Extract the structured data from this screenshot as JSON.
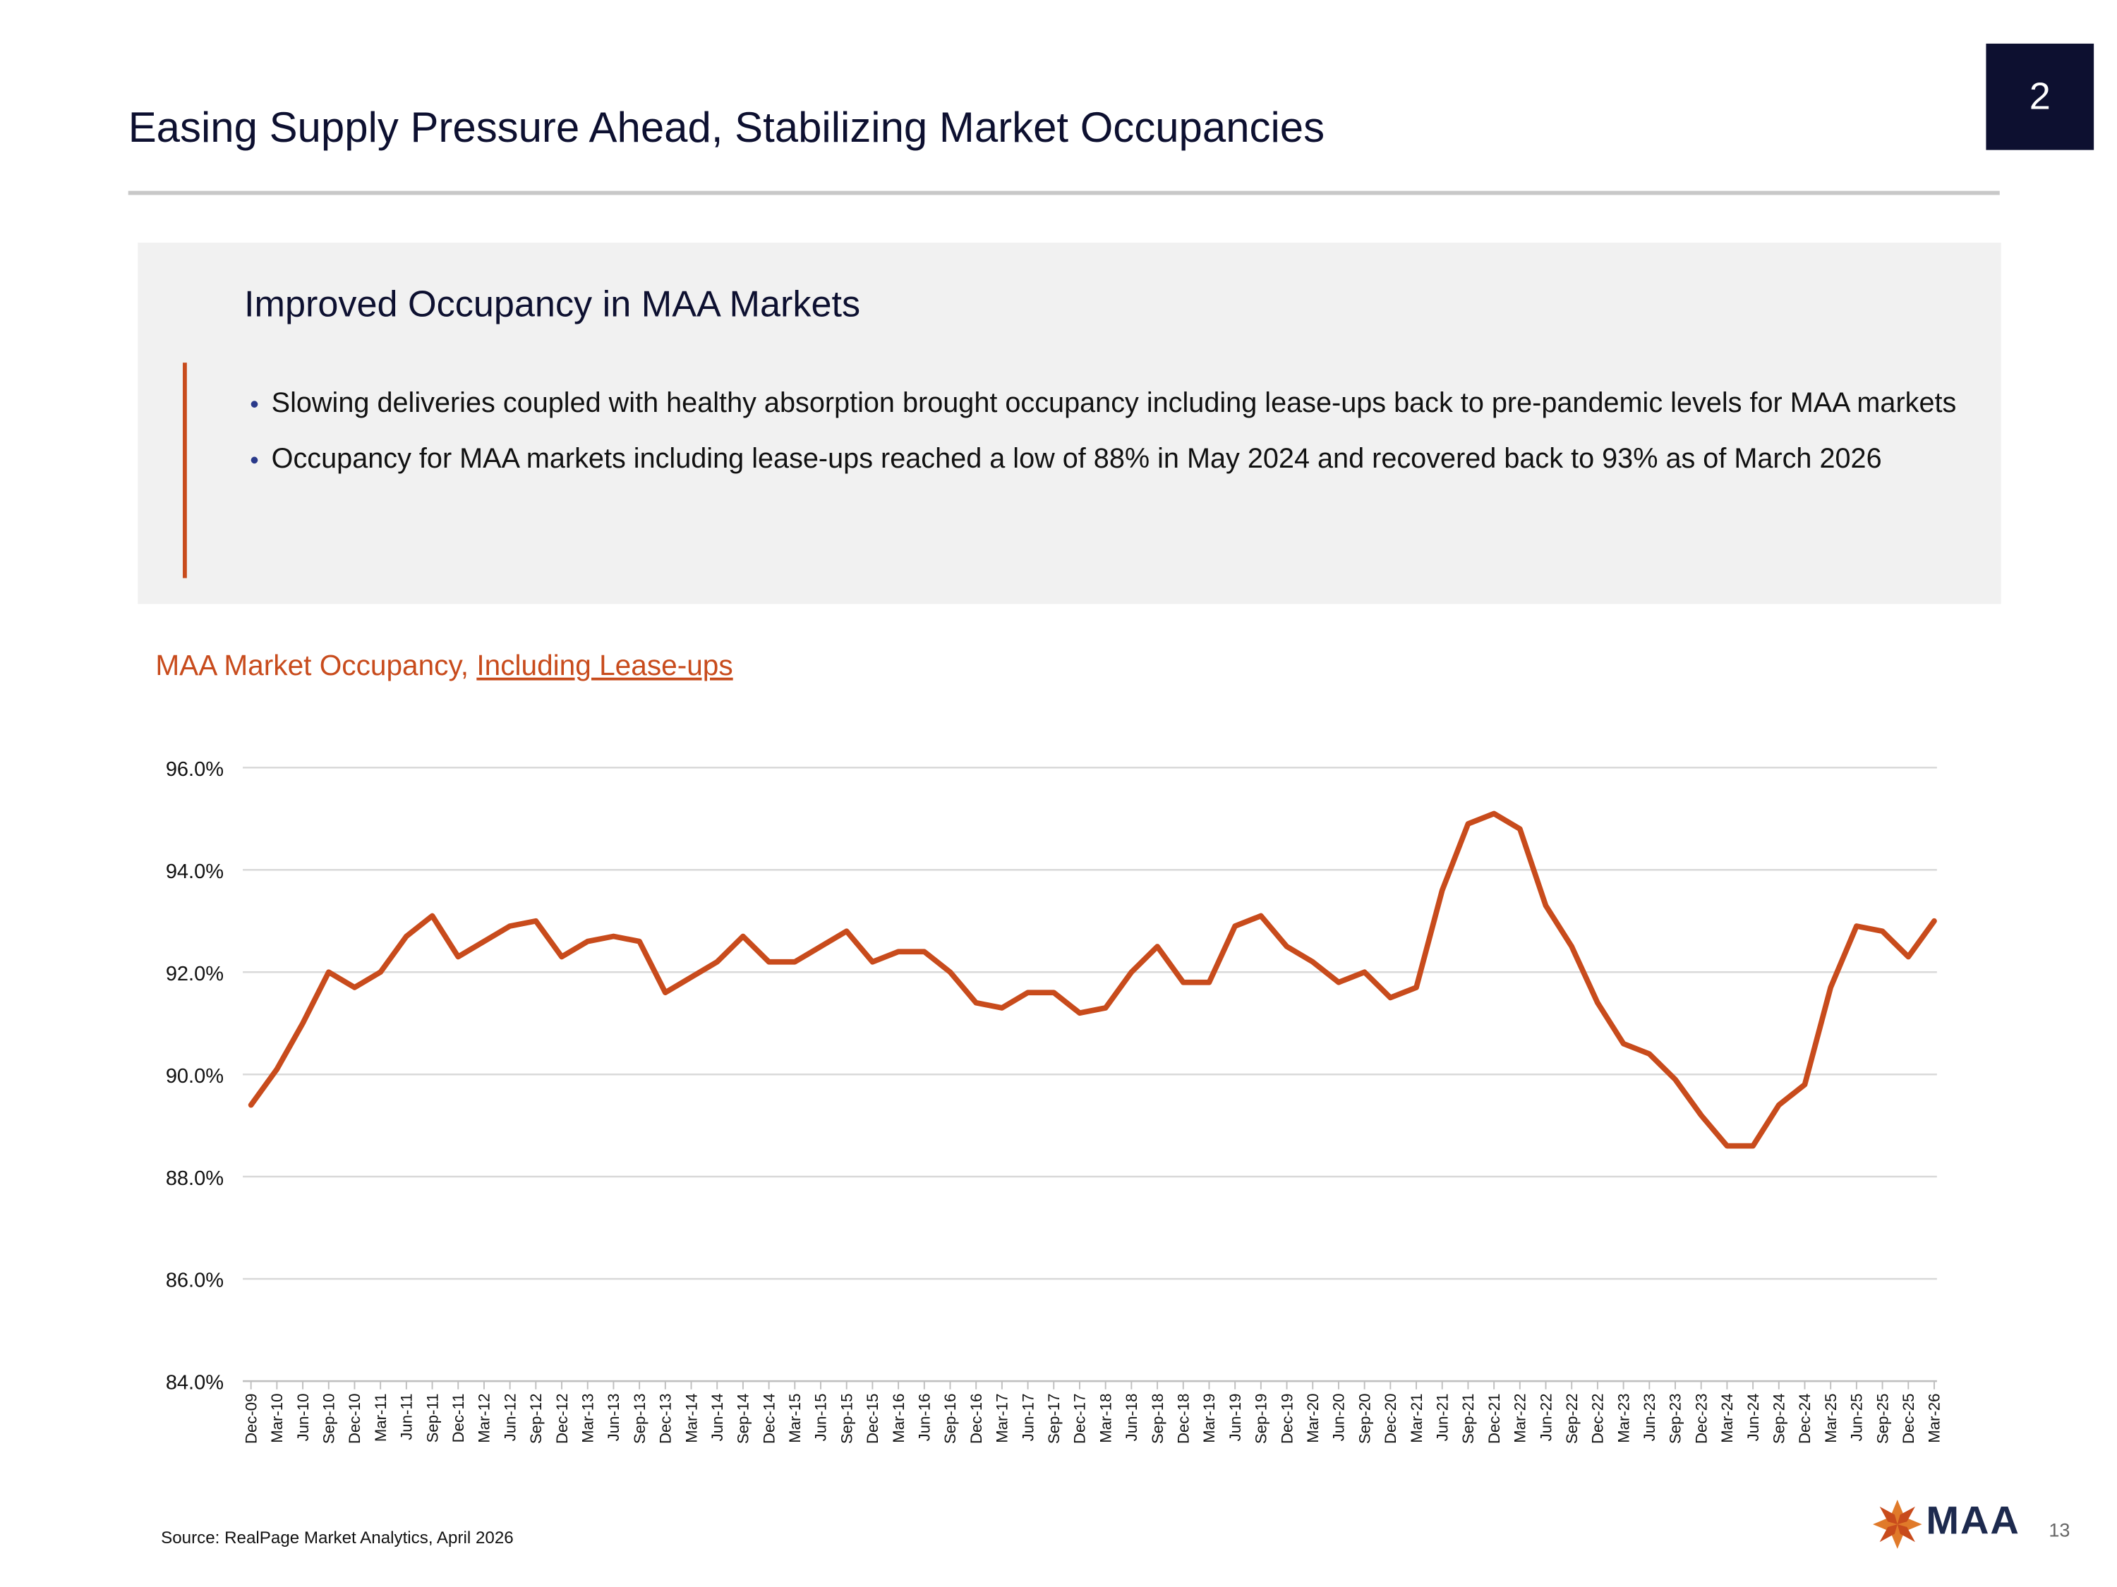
{
  "slide": {
    "page_badge": "2",
    "title": "Easing Supply Pressure Ahead, Stabilizing Market Occupancies",
    "box_title": "Improved Occupancy in MAA Markets",
    "bullets": [
      "Slowing deliveries coupled with healthy absorption brought occupancy including lease-ups back to pre-pandemic levels for MAA markets",
      "Occupancy for MAA markets including lease-ups reached a low of 88% in May 2024 and recovered back to 93% as of March 2026"
    ],
    "chart_title": "MAA Market Occupancy,",
    "chart_title_link": "Including Lease-ups",
    "source": "Source: RealPage Market Analytics, April 2026",
    "logo": "MAA",
    "page_number": "13"
  },
  "chart_data": {
    "type": "line",
    "categories": [
      "Dec-09",
      "Mar-10",
      "Jun-10",
      "Sep-10",
      "Dec-10",
      "Mar-11",
      "Jun-11",
      "Sep-11",
      "Dec-11",
      "Mar-12",
      "Jun-12",
      "Sep-12",
      "Dec-12",
      "Mar-13",
      "Jun-13",
      "Sep-13",
      "Dec-13",
      "Mar-14",
      "Jun-14",
      "Sep-14",
      "Dec-14",
      "Mar-15",
      "Jun-15",
      "Sep-15",
      "Dec-15",
      "Mar-16",
      "Jun-16",
      "Sep-16",
      "Dec-16",
      "Mar-17",
      "Jun-17",
      "Sep-17",
      "Dec-17",
      "Mar-18",
      "Jun-18",
      "Sep-18",
      "Dec-18",
      "Mar-19",
      "Jun-19",
      "Sep-19",
      "Dec-19",
      "Mar-20",
      "Jun-20",
      "Sep-20",
      "Dec-20",
      "Mar-21",
      "Jun-21",
      "Sep-21",
      "Dec-21",
      "Mar-22",
      "Jun-22",
      "Sep-22",
      "Dec-22",
      "Mar-23",
      "Jun-23",
      "Sep-23",
      "Dec-23",
      "Mar-24",
      "Jun-24",
      "Sep-24",
      "Dec-24",
      "Mar-25",
      "Jun-25",
      "Sep-25",
      "Dec-25",
      "Mar-26"
    ],
    "series": [
      {
        "name": "MAA Market Occupancy",
        "color": "#c84b1c",
        "values": [
          89.4,
          90.1,
          91.0,
          92.0,
          91.7,
          92.0,
          92.7,
          93.1,
          92.3,
          92.6,
          92.9,
          93.0,
          92.3,
          92.6,
          92.7,
          92.6,
          91.6,
          91.9,
          92.2,
          92.7,
          92.2,
          92.2,
          92.5,
          92.8,
          92.2,
          92.4,
          92.4,
          92.0,
          91.4,
          91.3,
          91.6,
          91.6,
          91.2,
          91.3,
          92.0,
          92.5,
          91.8,
          91.8,
          92.9,
          93.1,
          92.5,
          92.2,
          91.8,
          92.0,
          91.5,
          91.7,
          93.6,
          94.9,
          95.1,
          94.8,
          93.3,
          92.5,
          91.4,
          90.6,
          90.4,
          89.9,
          89.2,
          88.6,
          88.6,
          89.4,
          89.8,
          91.7,
          92.9,
          92.8,
          92.3,
          93.0
        ]
      }
    ],
    "ylim": [
      84,
      96
    ],
    "yticks": [
      {
        "value": 84,
        "label": "84.0%"
      },
      {
        "value": 86,
        "label": "86.0%"
      },
      {
        "value": 88,
        "label": "88.0%"
      },
      {
        "value": 90,
        "label": "90.0%"
      },
      {
        "value": 92,
        "label": "92.0%"
      },
      {
        "value": 94,
        "label": "94.0%"
      },
      {
        "value": 96,
        "label": "96.0%"
      }
    ],
    "grid": true
  }
}
